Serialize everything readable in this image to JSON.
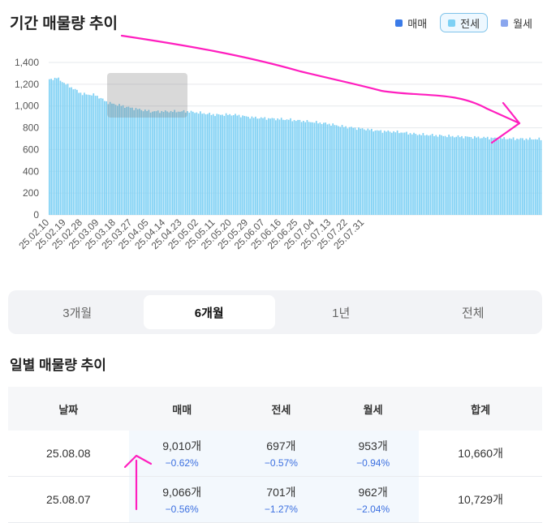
{
  "header": {
    "title": "기간 매물량 추이"
  },
  "legend": [
    {
      "label": "매매",
      "color": "#3b7be8",
      "active": false
    },
    {
      "label": "전세",
      "color": "#7dd0f4",
      "active": true
    },
    {
      "label": "월세",
      "color": "#8aa6ee",
      "active": false
    }
  ],
  "chart_data": {
    "type": "bar",
    "series_name": "전세",
    "bar_color": "#7dd0f4",
    "ylim": [
      0,
      1400
    ],
    "yticks": [
      "0",
      "200",
      "400",
      "600",
      "800",
      "1,000",
      "1,200",
      "1,400"
    ],
    "ytick_values": [
      0,
      200,
      400,
      600,
      800,
      1000,
      1200,
      1400
    ],
    "grid": true,
    "xtick_labels": [
      "25.02.10",
      "25.02.19",
      "25.02.28",
      "25.03.09",
      "25.03.18",
      "25.03.27",
      "25.04.05",
      "25.04.14",
      "25.04.23",
      "25.05.02",
      "25.05.11",
      "25.05.20",
      "25.05.29",
      "25.06.07",
      "25.06.16",
      "25.06.25",
      "25.07.04",
      "25.07.13",
      "25.07.22",
      "25.07.31"
    ],
    "start_date": "25.02.10",
    "end_date": "25.08.08",
    "anchors": [
      [
        0,
        1240
      ],
      [
        4,
        1260
      ],
      [
        9,
        1200
      ],
      [
        18,
        1110
      ],
      [
        25,
        1100
      ],
      [
        32,
        1030
      ],
      [
        45,
        980
      ],
      [
        55,
        950
      ],
      [
        75,
        950
      ],
      [
        90,
        920
      ],
      [
        100,
        920
      ],
      [
        110,
        895
      ],
      [
        130,
        875
      ],
      [
        150,
        840
      ],
      [
        160,
        810
      ],
      [
        170,
        790
      ],
      [
        180,
        770
      ],
      [
        190,
        760
      ],
      [
        200,
        740
      ],
      [
        210,
        730
      ],
      [
        220,
        720
      ],
      [
        235,
        710
      ],
      [
        250,
        700
      ],
      [
        267,
        695
      ]
    ]
  },
  "tabs": [
    {
      "label": "3개월",
      "selected": false
    },
    {
      "label": "6개월",
      "selected": true
    },
    {
      "label": "1년",
      "selected": false
    },
    {
      "label": "전체",
      "selected": false
    }
  ],
  "daily": {
    "title": "일별 매물량 추이",
    "columns": [
      "날짜",
      "매매",
      "전세",
      "월세",
      "합계"
    ],
    "rows": [
      {
        "date": "25.08.08",
        "sale": "9,010개",
        "sale_chg": "−0.62%",
        "jeonse": "697개",
        "jeonse_chg": "−0.57%",
        "monthly": "953개",
        "monthly_chg": "−0.94%",
        "total": "10,660개"
      },
      {
        "date": "25.08.07",
        "sale": "9,066개",
        "sale_chg": "−0.56%",
        "jeonse": "701개",
        "jeonse_chg": "−1.27%",
        "monthly": "962개",
        "monthly_chg": "−2.04%",
        "total": "10,729개"
      }
    ]
  }
}
